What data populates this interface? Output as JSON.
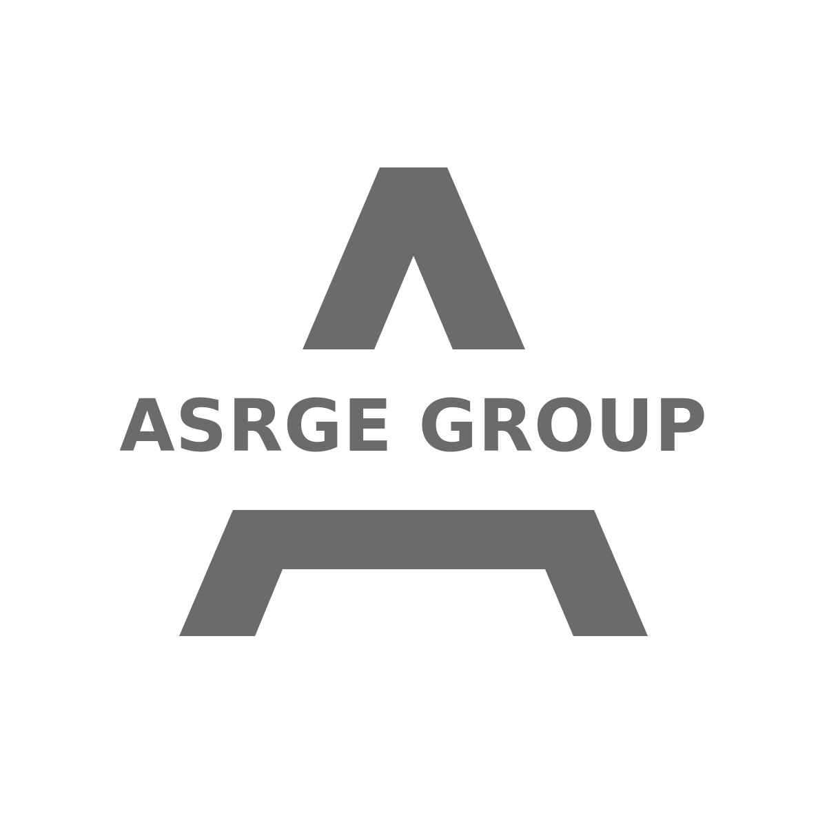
{
  "logo": {
    "wordmark": "ASRGE GROUP",
    "color": "#6b6b6b",
    "background": "#ffffff"
  }
}
